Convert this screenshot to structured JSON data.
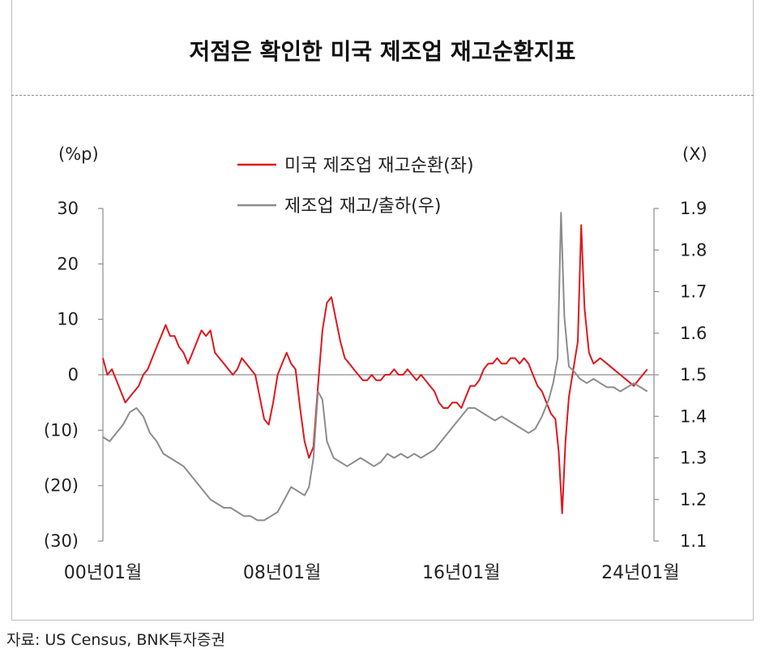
{
  "title": "저점은 확인한 미국 제조업 재고순환지표",
  "source": "자료: US Census, BNK투자증권",
  "chart_data": {
    "type": "line",
    "left_unit": "(%p)",
    "right_unit": "(X)",
    "left_axis": {
      "ylim": [
        -30,
        30
      ],
      "ticks": [
        "30",
        "20",
        "10",
        "0",
        "(10)",
        "(20)",
        "(30)"
      ],
      "tick_values": [
        30,
        20,
        10,
        0,
        -10,
        -20,
        -30
      ]
    },
    "right_axis": {
      "ylim": [
        1.1,
        1.9
      ],
      "ticks": [
        "1.9",
        "1.8",
        "1.7",
        "1.6",
        "1.5",
        "1.4",
        "1.3",
        "1.2",
        "1.1"
      ],
      "tick_values": [
        1.9,
        1.8,
        1.7,
        1.6,
        1.5,
        1.4,
        1.3,
        1.2,
        1.1
      ]
    },
    "x_ticks": [
      {
        "label": "00년01월",
        "value": 2000
      },
      {
        "label": "08년01월",
        "value": 2008
      },
      {
        "label": "16년01월",
        "value": 2016
      },
      {
        "label": "24년01월",
        "value": 2024
      }
    ],
    "xlim": [
      2000,
      2024.6
    ],
    "series": [
      {
        "name": "미국 제조업 재고순환(좌)",
        "axis": "left",
        "color": "#e0161c",
        "points": [
          [
            2000.0,
            3
          ],
          [
            2000.2,
            0
          ],
          [
            2000.4,
            1
          ],
          [
            2000.6,
            -1
          ],
          [
            2000.8,
            -3
          ],
          [
            2001.0,
            -5
          ],
          [
            2001.2,
            -4
          ],
          [
            2001.4,
            -3
          ],
          [
            2001.6,
            -2
          ],
          [
            2001.8,
            0
          ],
          [
            2002.0,
            1
          ],
          [
            2002.2,
            3
          ],
          [
            2002.4,
            5
          ],
          [
            2002.6,
            7
          ],
          [
            2002.8,
            9
          ],
          [
            2003.0,
            7
          ],
          [
            2003.2,
            7
          ],
          [
            2003.4,
            5
          ],
          [
            2003.6,
            4
          ],
          [
            2003.8,
            2
          ],
          [
            2004.0,
            4
          ],
          [
            2004.2,
            6
          ],
          [
            2004.4,
            8
          ],
          [
            2004.6,
            7
          ],
          [
            2004.8,
            8
          ],
          [
            2005.0,
            4
          ],
          [
            2005.2,
            3
          ],
          [
            2005.4,
            2
          ],
          [
            2005.6,
            1
          ],
          [
            2005.8,
            0
          ],
          [
            2006.0,
            1
          ],
          [
            2006.2,
            3
          ],
          [
            2006.4,
            2
          ],
          [
            2006.6,
            1
          ],
          [
            2006.8,
            0
          ],
          [
            2007.0,
            -4
          ],
          [
            2007.2,
            -8
          ],
          [
            2007.4,
            -9
          ],
          [
            2007.6,
            -5
          ],
          [
            2007.8,
            0
          ],
          [
            2008.0,
            2
          ],
          [
            2008.2,
            4
          ],
          [
            2008.4,
            2
          ],
          [
            2008.6,
            1
          ],
          [
            2008.8,
            -6
          ],
          [
            2009.0,
            -12
          ],
          [
            2009.2,
            -15
          ],
          [
            2009.4,
            -13
          ],
          [
            2009.6,
            -2
          ],
          [
            2009.8,
            8
          ],
          [
            2010.0,
            13
          ],
          [
            2010.2,
            14
          ],
          [
            2010.4,
            10
          ],
          [
            2010.6,
            6
          ],
          [
            2010.8,
            3
          ],
          [
            2011.0,
            2
          ],
          [
            2011.2,
            1
          ],
          [
            2011.4,
            0
          ],
          [
            2011.6,
            -1
          ],
          [
            2011.8,
            -1
          ],
          [
            2012.0,
            0
          ],
          [
            2012.2,
            -1
          ],
          [
            2012.4,
            -1
          ],
          [
            2012.6,
            0
          ],
          [
            2012.8,
            0
          ],
          [
            2013.0,
            1
          ],
          [
            2013.2,
            0
          ],
          [
            2013.4,
            0
          ],
          [
            2013.6,
            1
          ],
          [
            2013.8,
            0
          ],
          [
            2014.0,
            -1
          ],
          [
            2014.2,
            0
          ],
          [
            2014.4,
            -1
          ],
          [
            2014.6,
            -2
          ],
          [
            2014.8,
            -3
          ],
          [
            2015.0,
            -5
          ],
          [
            2015.2,
            -6
          ],
          [
            2015.4,
            -6
          ],
          [
            2015.6,
            -5
          ],
          [
            2015.8,
            -5
          ],
          [
            2016.0,
            -6
          ],
          [
            2016.2,
            -4
          ],
          [
            2016.4,
            -2
          ],
          [
            2016.6,
            -2
          ],
          [
            2016.8,
            -1
          ],
          [
            2017.0,
            1
          ],
          [
            2017.2,
            2
          ],
          [
            2017.4,
            2
          ],
          [
            2017.6,
            3
          ],
          [
            2017.8,
            2
          ],
          [
            2018.0,
            2
          ],
          [
            2018.2,
            3
          ],
          [
            2018.4,
            3
          ],
          [
            2018.6,
            2
          ],
          [
            2018.8,
            3
          ],
          [
            2019.0,
            2
          ],
          [
            2019.2,
            0
          ],
          [
            2019.4,
            -2
          ],
          [
            2019.6,
            -3
          ],
          [
            2019.8,
            -5
          ],
          [
            2020.0,
            -7
          ],
          [
            2020.2,
            -8
          ],
          [
            2020.35,
            -14
          ],
          [
            2020.5,
            -25
          ],
          [
            2020.65,
            -12
          ],
          [
            2020.8,
            -4
          ],
          [
            2021.0,
            1
          ],
          [
            2021.2,
            6
          ],
          [
            2021.35,
            27
          ],
          [
            2021.5,
            12
          ],
          [
            2021.7,
            4
          ],
          [
            2021.9,
            2
          ],
          [
            2022.2,
            3
          ],
          [
            2022.5,
            2
          ],
          [
            2022.8,
            1
          ],
          [
            2023.1,
            0
          ],
          [
            2023.4,
            -1
          ],
          [
            2023.7,
            -2
          ],
          [
            2023.9,
            -1
          ],
          [
            2024.1,
            0
          ],
          [
            2024.3,
            1
          ]
        ]
      },
      {
        "name": "제조업 재고/출하(우)",
        "axis": "right",
        "color": "#8c8c8c",
        "points": [
          [
            2000.0,
            1.35
          ],
          [
            2000.3,
            1.34
          ],
          [
            2000.6,
            1.36
          ],
          [
            2000.9,
            1.38
          ],
          [
            2001.2,
            1.41
          ],
          [
            2001.5,
            1.42
          ],
          [
            2001.8,
            1.4
          ],
          [
            2002.1,
            1.36
          ],
          [
            2002.4,
            1.34
          ],
          [
            2002.7,
            1.31
          ],
          [
            2003.0,
            1.3
          ],
          [
            2003.3,
            1.29
          ],
          [
            2003.6,
            1.28
          ],
          [
            2003.9,
            1.26
          ],
          [
            2004.2,
            1.24
          ],
          [
            2004.5,
            1.22
          ],
          [
            2004.8,
            1.2
          ],
          [
            2005.1,
            1.19
          ],
          [
            2005.4,
            1.18
          ],
          [
            2005.7,
            1.18
          ],
          [
            2006.0,
            1.17
          ],
          [
            2006.3,
            1.16
          ],
          [
            2006.6,
            1.16
          ],
          [
            2006.9,
            1.15
          ],
          [
            2007.2,
            1.15
          ],
          [
            2007.5,
            1.16
          ],
          [
            2007.8,
            1.17
          ],
          [
            2008.1,
            1.2
          ],
          [
            2008.4,
            1.23
          ],
          [
            2008.7,
            1.22
          ],
          [
            2009.0,
            1.21
          ],
          [
            2009.2,
            1.23
          ],
          [
            2009.4,
            1.3
          ],
          [
            2009.6,
            1.46
          ],
          [
            2009.8,
            1.44
          ],
          [
            2010.0,
            1.34
          ],
          [
            2010.3,
            1.3
          ],
          [
            2010.6,
            1.29
          ],
          [
            2010.9,
            1.28
          ],
          [
            2011.2,
            1.29
          ],
          [
            2011.5,
            1.3
          ],
          [
            2011.8,
            1.29
          ],
          [
            2012.1,
            1.28
          ],
          [
            2012.4,
            1.29
          ],
          [
            2012.7,
            1.31
          ],
          [
            2013.0,
            1.3
          ],
          [
            2013.3,
            1.31
          ],
          [
            2013.6,
            1.3
          ],
          [
            2013.9,
            1.31
          ],
          [
            2014.2,
            1.3
          ],
          [
            2014.5,
            1.31
          ],
          [
            2014.8,
            1.32
          ],
          [
            2015.1,
            1.34
          ],
          [
            2015.4,
            1.36
          ],
          [
            2015.7,
            1.38
          ],
          [
            2016.0,
            1.4
          ],
          [
            2016.3,
            1.42
          ],
          [
            2016.6,
            1.42
          ],
          [
            2016.9,
            1.41
          ],
          [
            2017.2,
            1.4
          ],
          [
            2017.5,
            1.39
          ],
          [
            2017.8,
            1.4
          ],
          [
            2018.1,
            1.39
          ],
          [
            2018.4,
            1.38
          ],
          [
            2018.7,
            1.37
          ],
          [
            2019.0,
            1.36
          ],
          [
            2019.3,
            1.37
          ],
          [
            2019.6,
            1.4
          ],
          [
            2019.9,
            1.44
          ],
          [
            2020.1,
            1.48
          ],
          [
            2020.3,
            1.54
          ],
          [
            2020.45,
            1.89
          ],
          [
            2020.6,
            1.64
          ],
          [
            2020.8,
            1.52
          ],
          [
            2021.0,
            1.51
          ],
          [
            2021.3,
            1.49
          ],
          [
            2021.6,
            1.48
          ],
          [
            2021.9,
            1.49
          ],
          [
            2022.2,
            1.48
          ],
          [
            2022.5,
            1.47
          ],
          [
            2022.8,
            1.47
          ],
          [
            2023.1,
            1.46
          ],
          [
            2023.4,
            1.47
          ],
          [
            2023.7,
            1.48
          ],
          [
            2024.0,
            1.47
          ],
          [
            2024.3,
            1.46
          ]
        ]
      }
    ]
  }
}
